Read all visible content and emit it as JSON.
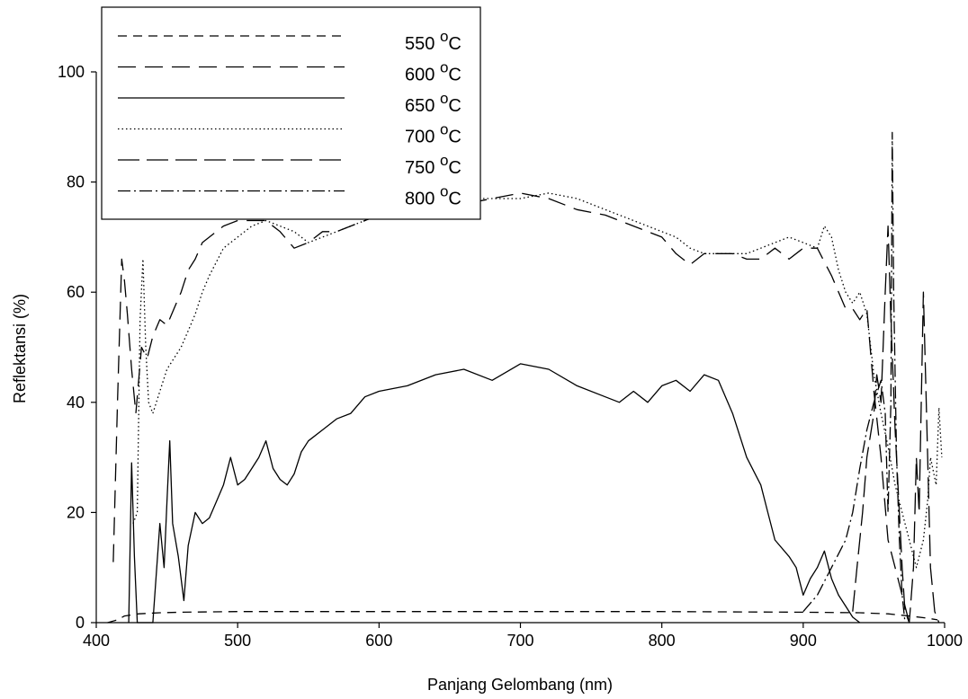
{
  "chart_data": {
    "type": "line",
    "title": "",
    "xlabel": "Panjang Gelombang (nm)",
    "ylabel": "Reflektansi (%)",
    "xlim": [
      400,
      1000
    ],
    "ylim": [
      0,
      100
    ],
    "xticks": [
      400,
      500,
      600,
      700,
      800,
      900,
      1000
    ],
    "yticks": [
      0,
      20,
      40,
      60,
      80,
      100
    ],
    "legend_position": "top-left",
    "grid": false,
    "series": [
      {
        "name": "550 °C",
        "label_main": "550 ",
        "label_sup": "o",
        "label_unit": "C",
        "dash": "10 7",
        "color": "#000000",
        "points": [
          [
            408,
            0
          ],
          [
            415,
            0.5
          ],
          [
            420,
            1.2
          ],
          [
            430,
            1.6
          ],
          [
            445,
            1.8
          ],
          [
            460,
            1.9
          ],
          [
            500,
            2
          ],
          [
            600,
            2
          ],
          [
            700,
            2
          ],
          [
            800,
            2
          ],
          [
            900,
            1.9
          ],
          [
            940,
            1.8
          ],
          [
            960,
            1.6
          ],
          [
            975,
            1.2
          ],
          [
            988,
            0.8
          ],
          [
            995,
            0.5
          ]
        ]
      },
      {
        "name": "600 °C",
        "label_main": "600 ",
        "label_sup": "o",
        "label_unit": "C",
        "dash": "20 10",
        "color": "#000000",
        "points": [
          [
            412,
            11
          ],
          [
            415,
            40
          ],
          [
            418,
            66
          ],
          [
            420,
            62
          ],
          [
            422,
            56
          ],
          [
            425,
            46
          ],
          [
            428,
            38
          ],
          [
            432,
            50
          ],
          [
            436,
            48
          ],
          [
            440,
            52
          ],
          [
            445,
            55
          ],
          [
            450,
            54
          ],
          [
            455,
            57
          ],
          [
            460,
            60
          ],
          [
            465,
            64
          ],
          [
            470,
            66
          ],
          [
            475,
            69
          ],
          [
            480,
            70
          ],
          [
            490,
            72
          ],
          [
            500,
            73
          ],
          [
            510,
            73
          ],
          [
            520,
            73
          ],
          [
            530,
            71
          ],
          [
            540,
            68
          ],
          [
            550,
            69
          ],
          [
            560,
            71
          ],
          [
            570,
            71
          ],
          [
            580,
            72
          ],
          [
            590,
            73
          ],
          [
            600,
            74
          ],
          [
            620,
            75
          ],
          [
            640,
            76
          ],
          [
            660,
            76
          ],
          [
            680,
            77
          ],
          [
            700,
            78
          ],
          [
            720,
            77
          ],
          [
            740,
            75
          ],
          [
            760,
            74
          ],
          [
            780,
            72
          ],
          [
            800,
            70
          ],
          [
            810,
            67
          ],
          [
            820,
            65
          ],
          [
            830,
            67
          ],
          [
            840,
            67
          ],
          [
            850,
            67
          ],
          [
            860,
            66
          ],
          [
            870,
            66
          ],
          [
            880,
            68
          ],
          [
            890,
            66
          ],
          [
            900,
            68
          ],
          [
            910,
            68
          ],
          [
            920,
            63
          ],
          [
            930,
            57
          ],
          [
            935,
            57
          ],
          [
            940,
            55
          ],
          [
            945,
            57
          ],
          [
            950,
            42
          ],
          [
            955,
            30
          ],
          [
            960,
            15
          ],
          [
            965,
            10
          ],
          [
            970,
            5
          ],
          [
            975,
            0
          ]
        ]
      },
      {
        "name": "650 °C",
        "label_main": "650 ",
        "label_sup": "o",
        "label_unit": "C",
        "dash": "",
        "color": "#000000",
        "points": [
          [
            423,
            0
          ],
          [
            425,
            29
          ],
          [
            427,
            12
          ],
          [
            429,
            0
          ],
          [
            440,
            0
          ],
          [
            445,
            18
          ],
          [
            448,
            10
          ],
          [
            450,
            22
          ],
          [
            452,
            33
          ],
          [
            454,
            18
          ],
          [
            458,
            12
          ],
          [
            462,
            4
          ],
          [
            465,
            14
          ],
          [
            470,
            20
          ],
          [
            475,
            18
          ],
          [
            480,
            19
          ],
          [
            485,
            22
          ],
          [
            490,
            25
          ],
          [
            495,
            30
          ],
          [
            500,
            25
          ],
          [
            505,
            26
          ],
          [
            510,
            28
          ],
          [
            515,
            30
          ],
          [
            520,
            33
          ],
          [
            525,
            28
          ],
          [
            530,
            26
          ],
          [
            535,
            25
          ],
          [
            540,
            27
          ],
          [
            545,
            31
          ],
          [
            550,
            33
          ],
          [
            560,
            35
          ],
          [
            570,
            37
          ],
          [
            580,
            38
          ],
          [
            590,
            41
          ],
          [
            600,
            42
          ],
          [
            620,
            43
          ],
          [
            640,
            45
          ],
          [
            660,
            46
          ],
          [
            680,
            44
          ],
          [
            700,
            47
          ],
          [
            720,
            46
          ],
          [
            740,
            43
          ],
          [
            760,
            41
          ],
          [
            770,
            40
          ],
          [
            780,
            42
          ],
          [
            790,
            40
          ],
          [
            800,
            43
          ],
          [
            810,
            44
          ],
          [
            820,
            42
          ],
          [
            830,
            45
          ],
          [
            840,
            44
          ],
          [
            850,
            38
          ],
          [
            860,
            30
          ],
          [
            870,
            25
          ],
          [
            875,
            20
          ],
          [
            880,
            15
          ],
          [
            890,
            12
          ],
          [
            895,
            10
          ],
          [
            900,
            5
          ],
          [
            905,
            8
          ],
          [
            910,
            10
          ],
          [
            915,
            13
          ],
          [
            920,
            8
          ],
          [
            925,
            5
          ],
          [
            930,
            3
          ],
          [
            935,
            1
          ],
          [
            940,
            0
          ]
        ]
      },
      {
        "name": "700 °C",
        "label_main": "700 ",
        "label_sup": "o",
        "label_unit": "C",
        "dash": "1.5 3",
        "color": "#000000",
        "points": [
          [
            426,
            18
          ],
          [
            429,
            20
          ],
          [
            431,
            55
          ],
          [
            433,
            66
          ],
          [
            435,
            50
          ],
          [
            437,
            40
          ],
          [
            440,
            38
          ],
          [
            445,
            42
          ],
          [
            450,
            46
          ],
          [
            455,
            48
          ],
          [
            460,
            50
          ],
          [
            465,
            53
          ],
          [
            470,
            56
          ],
          [
            475,
            60
          ],
          [
            480,
            63
          ],
          [
            490,
            68
          ],
          [
            500,
            70
          ],
          [
            510,
            72
          ],
          [
            520,
            73
          ],
          [
            530,
            72
          ],
          [
            540,
            71
          ],
          [
            550,
            69
          ],
          [
            560,
            70
          ],
          [
            570,
            71
          ],
          [
            580,
            72
          ],
          [
            590,
            73
          ],
          [
            600,
            74
          ],
          [
            620,
            75
          ],
          [
            640,
            76
          ],
          [
            660,
            77
          ],
          [
            680,
            77
          ],
          [
            700,
            77
          ],
          [
            720,
            78
          ],
          [
            740,
            77
          ],
          [
            760,
            75
          ],
          [
            780,
            73
          ],
          [
            800,
            71
          ],
          [
            810,
            70
          ],
          [
            820,
            68
          ],
          [
            830,
            67
          ],
          [
            840,
            67
          ],
          [
            850,
            67
          ],
          [
            860,
            67
          ],
          [
            870,
            68
          ],
          [
            880,
            69
          ],
          [
            890,
            70
          ],
          [
            900,
            69
          ],
          [
            910,
            68
          ],
          [
            915,
            72
          ],
          [
            920,
            70
          ],
          [
            925,
            64
          ],
          [
            930,
            60
          ],
          [
            935,
            58
          ],
          [
            940,
            60
          ],
          [
            945,
            56
          ],
          [
            950,
            45
          ],
          [
            955,
            38
          ],
          [
            960,
            32
          ],
          [
            965,
            25
          ],
          [
            970,
            20
          ],
          [
            975,
            15
          ],
          [
            980,
            10
          ],
          [
            985,
            15
          ],
          [
            988,
            22
          ],
          [
            990,
            30
          ],
          [
            994,
            25
          ],
          [
            996,
            39
          ],
          [
            998,
            30
          ]
        ]
      },
      {
        "name": "750 °C",
        "label_main": "750 ",
        "label_sup": "o",
        "label_unit": "C",
        "dash": "24 8",
        "color": "#000000",
        "points": [
          [
            935,
            2
          ],
          [
            938,
            10
          ],
          [
            942,
            20
          ],
          [
            945,
            30
          ],
          [
            950,
            38
          ],
          [
            952,
            45
          ],
          [
            955,
            40
          ],
          [
            958,
            60
          ],
          [
            960,
            72
          ],
          [
            962,
            55
          ],
          [
            965,
            35
          ],
          [
            968,
            20
          ],
          [
            970,
            10
          ],
          [
            972,
            2
          ],
          [
            975,
            0
          ],
          [
            978,
            10
          ],
          [
            980,
            30
          ],
          [
            982,
            20
          ],
          [
            985,
            60
          ],
          [
            987,
            40
          ],
          [
            990,
            10
          ],
          [
            993,
            2
          ],
          [
            996,
            0
          ]
        ]
      },
      {
        "name": "800 °C",
        "label_main": "800 ",
        "label_sup": "o",
        "label_unit": "C",
        "dash": "14 4 2 4",
        "color": "#000000",
        "points": [
          [
            900,
            2
          ],
          [
            910,
            5
          ],
          [
            920,
            10
          ],
          [
            930,
            15
          ],
          [
            935,
            20
          ],
          [
            940,
            28
          ],
          [
            945,
            35
          ],
          [
            950,
            40
          ],
          [
            955,
            44
          ],
          [
            958,
            38
          ],
          [
            960,
            20
          ],
          [
            962,
            40
          ],
          [
            963,
            89
          ],
          [
            964,
            60
          ],
          [
            966,
            30
          ],
          [
            968,
            15
          ],
          [
            970,
            5
          ],
          [
            972,
            0
          ]
        ]
      }
    ]
  }
}
